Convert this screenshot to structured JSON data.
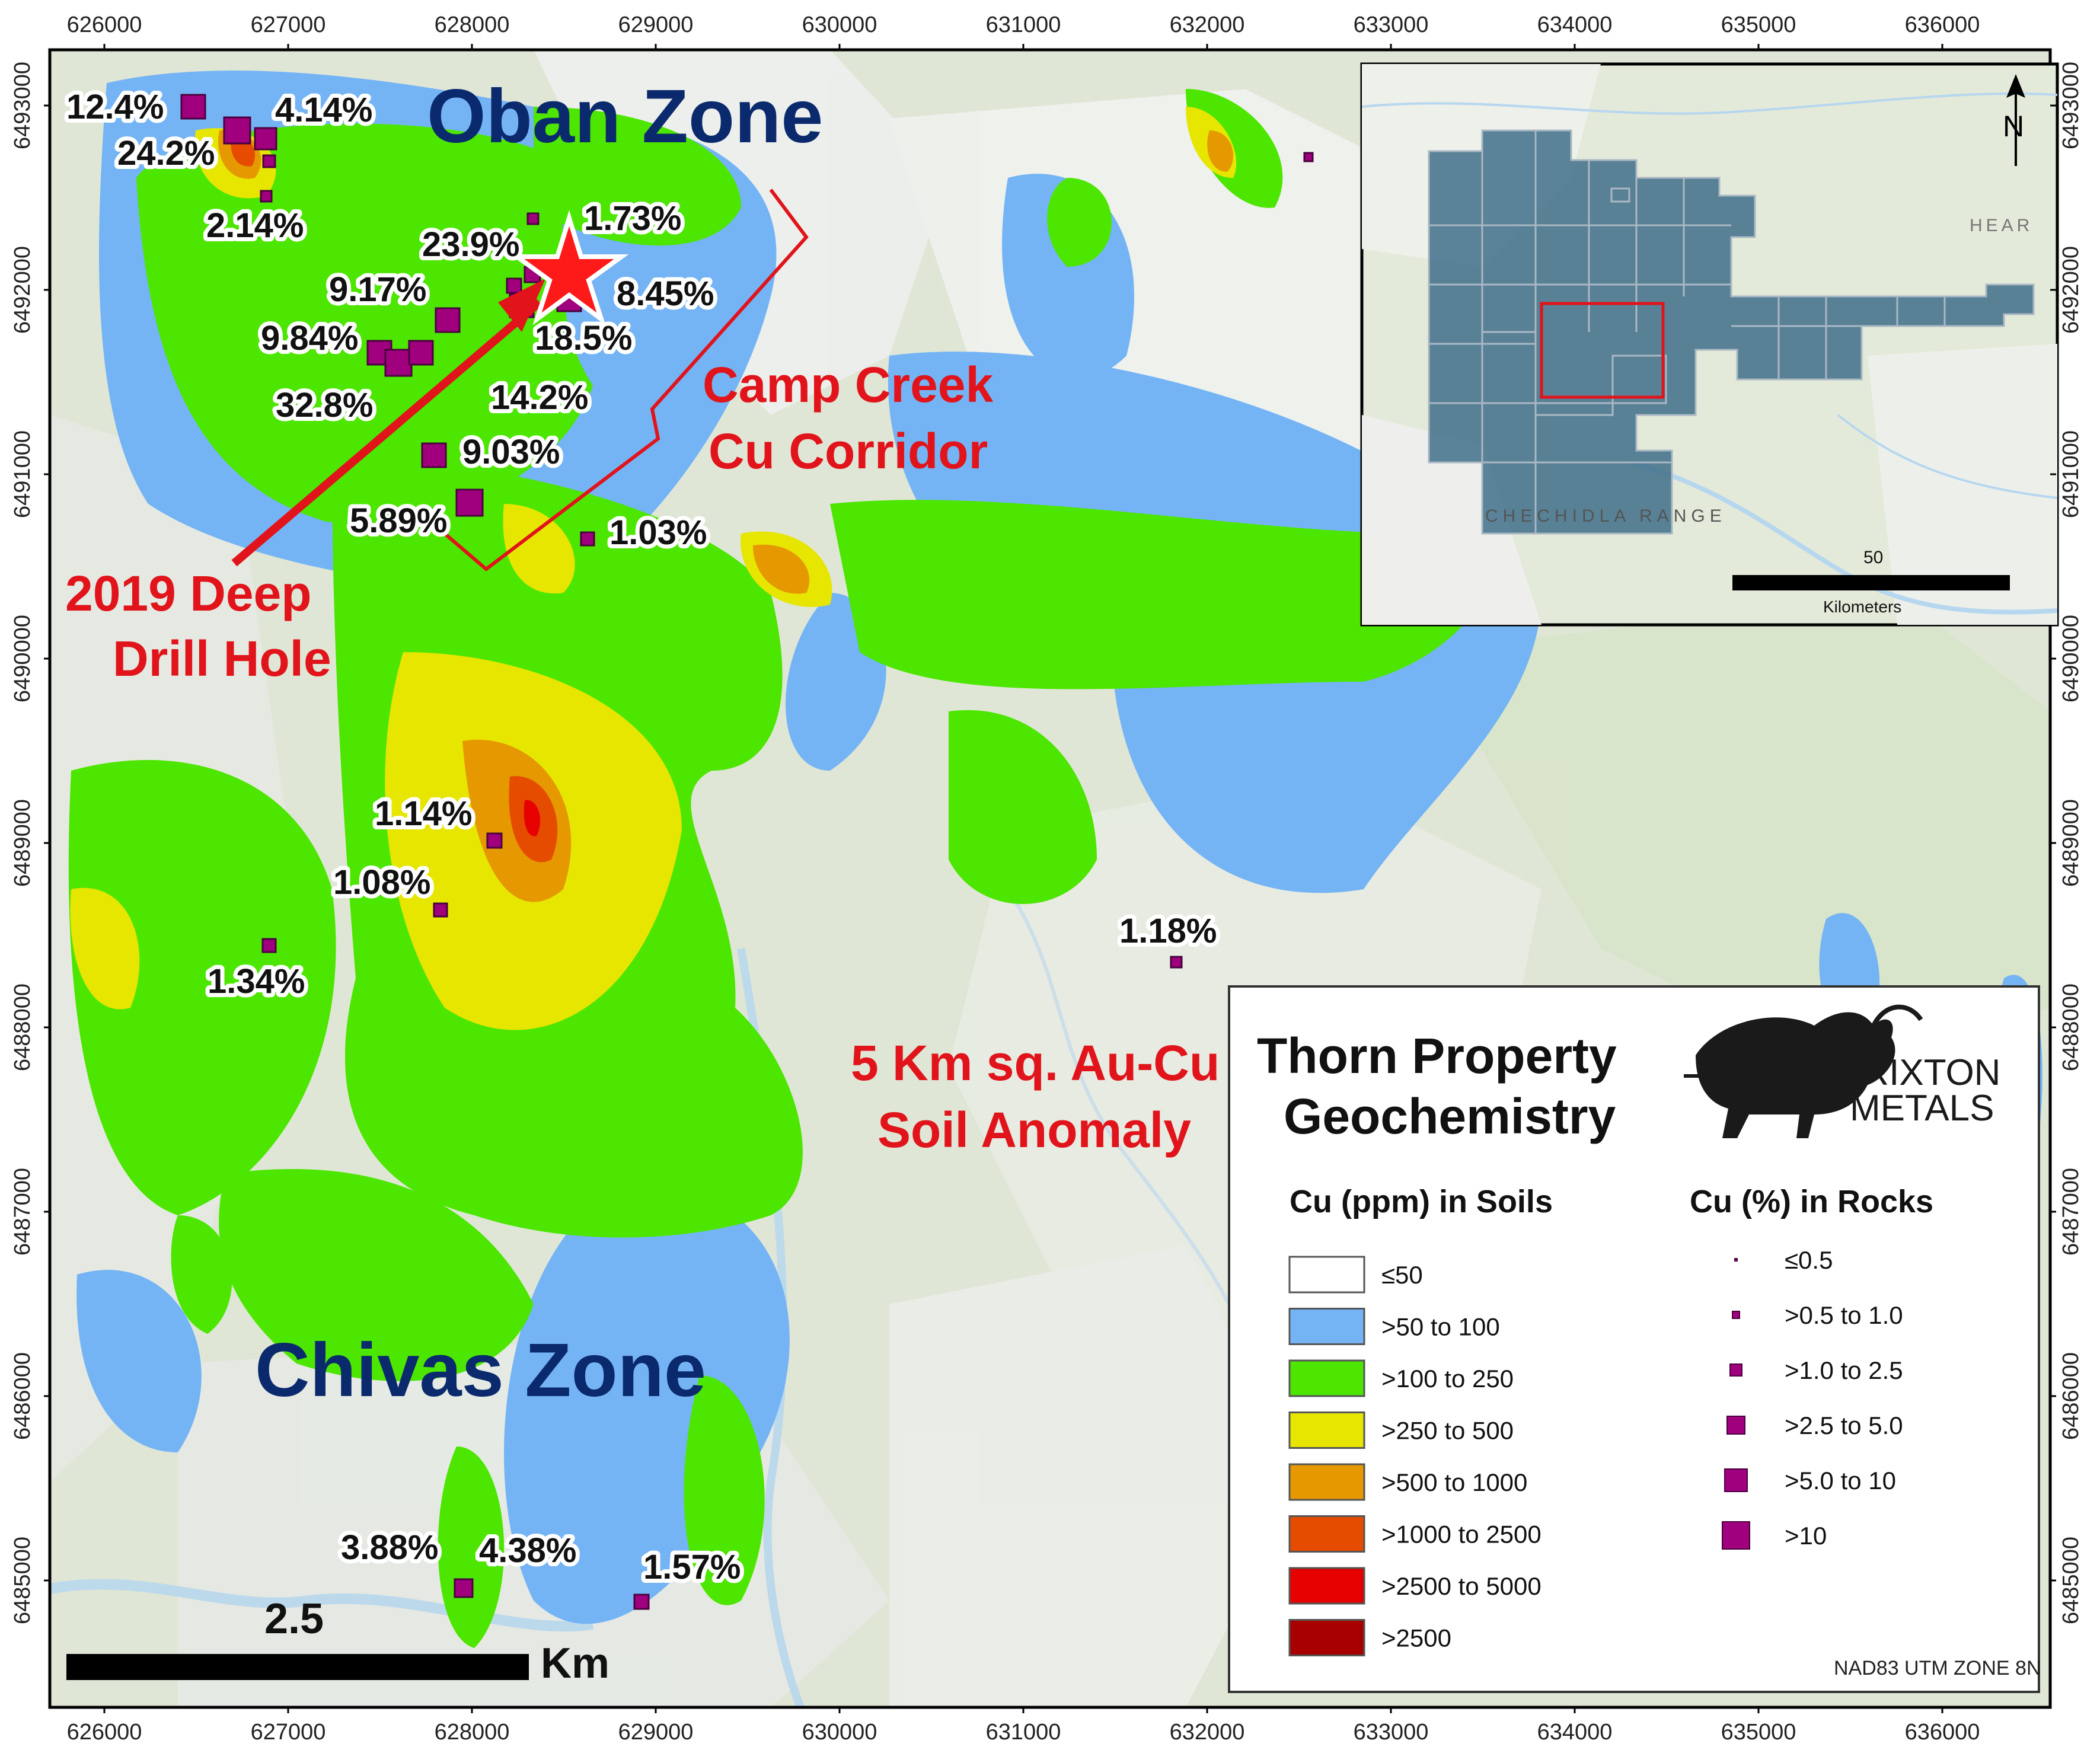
{
  "map": {
    "zones": {
      "oban": "Oban Zone",
      "chivas": "Chivas Zone"
    },
    "annotations": {
      "camp_creek_line1": "Camp Creek",
      "camp_creek_line2": "Cu Corridor",
      "drill_hole_line1": "2019 Deep",
      "drill_hole_line2": "Drill Hole",
      "anomaly_line1": "5 Km sq. Au-Cu",
      "anomaly_line2": "Soil Anomaly"
    },
    "assays": [
      "12.4%",
      "4.14%",
      "24.2%",
      "2.14%",
      "1.73%",
      "23.9%",
      "9.17%",
      "8.45%",
      "18.5%",
      "9.84%",
      "14.2%",
      "32.8%",
      "9.03%",
      "5.89%",
      "1.03%",
      "1.14%",
      "1.08%",
      "1.34%",
      "1.18%",
      "3.88%",
      "4.38%",
      "1.57%"
    ],
    "easting_ticks": [
      "626000",
      "627000",
      "628000",
      "629000",
      "630000",
      "631000",
      "632000",
      "633000",
      "634000",
      "635000",
      "636000"
    ],
    "northing_ticks": [
      "6493000",
      "6492000",
      "6491000",
      "6490000",
      "6489000",
      "6488000",
      "6487000",
      "6486000",
      "6485000"
    ],
    "scale_bar": {
      "value": "2.5",
      "unit": "Km"
    },
    "colors": {
      "soil_blue": "#74b4f5",
      "soil_green": "#4ce600",
      "soil_yellow": "#e6e600",
      "soil_orange": "#e69800",
      "soil_redorange": "#e64c00",
      "soil_red": "#e60000",
      "soil_darkred": "#a80000",
      "rock_purple": "#a0007d",
      "annotation_red": "#e1141b",
      "zone_blue": "#0b2a6e",
      "claims_fill": "#3f6f8a"
    }
  },
  "inset": {
    "range_label": "CHECHIDLA RANGE",
    "edge_label": "HEAR",
    "north_label": "N",
    "scale_value": "50",
    "scale_unit": "Kilometers"
  },
  "legend": {
    "title_line1": "Thorn Property",
    "title_line2": "Geochemistry",
    "company_line1": "BRIXTON",
    "company_line2": "METALS",
    "soils_heading": "Cu (ppm) in Soils",
    "rocks_heading": "Cu (%) in Rocks",
    "soils": [
      {
        "label": "≤50",
        "color": "#ffffff"
      },
      {
        "label": ">50 to 100",
        "color": "#74b4f5"
      },
      {
        "label": ">100 to 250",
        "color": "#4ce600"
      },
      {
        "label": ">250 to 500",
        "color": "#e6e600"
      },
      {
        "label": ">500 to 1000",
        "color": "#e69800"
      },
      {
        "label": ">1000 to 2500",
        "color": "#e64c00"
      },
      {
        "label": ">2500 to 5000",
        "color": "#e60000"
      },
      {
        "label": ">2500",
        "color": "#a80000"
      }
    ],
    "rocks": [
      "≤0.5",
      ">0.5 to 1.0",
      ">1.0 to 2.5",
      ">2.5 to 5.0",
      ">5.0 to 10",
      ">10"
    ],
    "datum": "NAD83 UTM ZONE 8N"
  }
}
